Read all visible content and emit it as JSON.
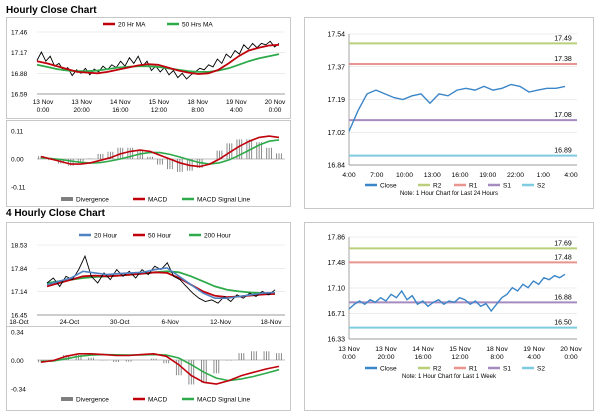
{
  "sections": {
    "hourly_title": "Hourly Close Chart",
    "four_hourly_title": "4 Hourly Close Chart"
  },
  "colors": {
    "price": "#000000",
    "ma_short": "#c0000b",
    "ma_long": "#2eaa4a",
    "ma_blue": "#4f82c2",
    "macd_line": "#c0000b",
    "macd_signal": "#2eaa4a",
    "divergence": "#7f7f7f",
    "close_line": "#3a86c8",
    "r2": "#b9cf7b",
    "r1": "#e8958f",
    "s1": "#a68bc1",
    "s2": "#7fcbe0",
    "grid": "#d9d9d9"
  },
  "chart_data": [
    {
      "type": "line",
      "legend": [
        "20 Hr MA",
        "50 Hrs MA"
      ],
      "ylim": [
        16.59,
        17.46
      ],
      "yticks": [
        "17.46",
        "17.17",
        "16.88",
        "16.59"
      ],
      "xticks": [
        "13 Nov\n0:00",
        "13 Nov\n20:00",
        "14 Nov\n16:00",
        "15 Nov\n12:00",
        "18 Nov\n8:00",
        "19 Nov\n4:00",
        "20 Nov\n0:00"
      ],
      "series": [
        {
          "name": "Price",
          "color_key": "price",
          "values": [
            17.06,
            17.18,
            17.05,
            17.12,
            16.98,
            17.02,
            16.92,
            16.96,
            16.85,
            16.93,
            16.88,
            16.95,
            16.86,
            16.94,
            16.9,
            16.98,
            16.93,
            17.0,
            16.96,
            17.05,
            16.98,
            17.1,
            17.02,
            17.12,
            16.98,
            17.05,
            16.92,
            16.98,
            16.9,
            16.96,
            16.86,
            16.92,
            16.82,
            16.88,
            16.8,
            16.86,
            16.9,
            16.95,
            16.93,
            17.0,
            16.97,
            17.08,
            17.02,
            17.15,
            17.1,
            17.2,
            17.15,
            17.28,
            17.22,
            17.3,
            17.24,
            17.3,
            17.28,
            17.33,
            17.25,
            17.3
          ]
        },
        {
          "name": "20 Hr MA",
          "color_key": "ma_short",
          "values": [
            17.05,
            17.02,
            16.98,
            16.94,
            16.9,
            16.89,
            16.88,
            16.9,
            16.93,
            16.96,
            16.99,
            17.01,
            17.0,
            16.96,
            16.92,
            16.89,
            16.87,
            16.88,
            16.93,
            17.02,
            17.12,
            17.2,
            17.24,
            17.27,
            17.28
          ]
        },
        {
          "name": "50 Hrs MA",
          "color_key": "ma_long",
          "values": [
            17.0,
            16.97,
            16.94,
            16.92,
            16.91,
            16.91,
            16.92,
            16.94,
            16.96,
            16.97,
            16.98,
            16.98,
            16.97,
            16.95,
            16.93,
            16.91,
            16.9,
            16.9,
            16.92,
            16.95,
            17.0,
            17.05,
            17.09,
            17.12,
            17.15
          ]
        }
      ]
    },
    {
      "type": "bar",
      "legend": [
        "Divergence",
        "MACD",
        "MACD Signal Line"
      ],
      "ylim": [
        -0.11,
        0.11
      ],
      "yticks": [
        "0.11",
        "0.00",
        "-0.11"
      ],
      "series": [
        {
          "name": "MACD",
          "color_key": "macd_line",
          "values": [
            0.01,
            0.0,
            -0.01,
            -0.02,
            -0.02,
            -0.015,
            -0.005,
            0.005,
            0.02,
            0.03,
            0.035,
            0.03,
            0.015,
            0.0,
            -0.015,
            -0.025,
            -0.03,
            -0.02,
            0.0,
            0.025,
            0.05,
            0.07,
            0.085,
            0.09,
            0.085
          ]
        },
        {
          "name": "MACD Signal Line",
          "color_key": "macd_signal",
          "values": [
            0.005,
            0.002,
            -0.002,
            -0.008,
            -0.013,
            -0.016,
            -0.014,
            -0.008,
            0.0,
            0.01,
            0.02,
            0.026,
            0.025,
            0.018,
            0.008,
            -0.004,
            -0.014,
            -0.02,
            -0.015,
            -0.003,
            0.015,
            0.035,
            0.055,
            0.07,
            0.075
          ]
        }
      ]
    },
    {
      "type": "line",
      "ylim": [
        16.84,
        17.54
      ],
      "yticks": [
        "17.54",
        "17.37",
        "17.19",
        "17.02",
        "16.84"
      ],
      "xticks": [
        "4:00",
        "7:00",
        "10:00",
        "13:00",
        "16:00",
        "19:00",
        "22:00",
        "1:00",
        "4:00"
      ],
      "levels": [
        {
          "name": "R2",
          "value": 17.49,
          "label": "17.49",
          "color_key": "r2"
        },
        {
          "name": "R1",
          "value": 17.38,
          "label": "17.38",
          "color_key": "r1"
        },
        {
          "name": "S1",
          "value": 17.08,
          "label": "17.08",
          "color_key": "s1"
        },
        {
          "name": "S2",
          "value": 16.89,
          "label": "16.89",
          "color_key": "s2"
        }
      ],
      "legend": [
        "Close",
        "R2",
        "R1",
        "S1",
        "S2"
      ],
      "note": "Note: 1 Hour Chart for Last 24 Hours",
      "series": [
        {
          "name": "Close",
          "color_key": "close_line",
          "values": [
            17.02,
            17.13,
            17.22,
            17.24,
            17.22,
            17.2,
            17.19,
            17.21,
            17.22,
            17.17,
            17.22,
            17.21,
            17.24,
            17.25,
            17.24,
            17.26,
            17.24,
            17.25,
            17.27,
            17.26,
            17.23,
            17.24,
            17.25,
            17.25,
            17.26
          ]
        }
      ]
    },
    {
      "type": "line",
      "legend": [
        "20 Hour",
        "50 Hour",
        "200 Hour"
      ],
      "ylim": [
        16.45,
        18.53
      ],
      "yticks": [
        "18.53",
        "17.84",
        "17.14",
        "16.45"
      ],
      "xticks": [
        "18-Oct",
        "24-Oct",
        "30-Oct",
        "6-Nov",
        "12-Nov",
        "18-Nov"
      ],
      "series": [
        {
          "name": "Price",
          "color_key": "price",
          "values": [
            17.4,
            17.55,
            17.3,
            17.6,
            17.5,
            17.8,
            18.2,
            17.6,
            17.4,
            17.7,
            17.5,
            17.8,
            17.6,
            17.75,
            17.55,
            17.8,
            17.65,
            17.9,
            17.8,
            18.0,
            17.6,
            17.5,
            17.3,
            17.1,
            16.95,
            16.85,
            16.9,
            16.8,
            17.0,
            16.85,
            17.05,
            16.95,
            17.1,
            17.0,
            17.15,
            17.05,
            17.2
          ]
        },
        {
          "name": "20 Hour",
          "color_key": "ma_blue",
          "values": [
            17.35,
            17.45,
            17.55,
            17.75,
            17.7,
            17.65,
            17.68,
            17.7,
            17.72,
            17.8,
            17.85,
            17.6,
            17.35,
            17.1,
            16.95,
            16.95,
            17.0,
            17.05,
            17.1,
            17.12
          ]
        },
        {
          "name": "50 Hour",
          "color_key": "ma_short",
          "values": [
            17.3,
            17.4,
            17.5,
            17.6,
            17.62,
            17.6,
            17.62,
            17.65,
            17.68,
            17.72,
            17.7,
            17.55,
            17.35,
            17.15,
            17.02,
            16.98,
            17.0,
            17.03,
            17.06,
            17.08
          ]
        },
        {
          "name": "200 Hour",
          "color_key": "ma_long",
          "values": [
            17.4,
            17.45,
            17.5,
            17.55,
            17.58,
            17.6,
            17.62,
            17.65,
            17.68,
            17.72,
            17.75,
            17.72,
            17.6,
            17.45,
            17.3,
            17.2,
            17.15,
            17.12,
            17.1,
            17.08
          ]
        }
      ]
    },
    {
      "type": "bar",
      "legend": [
        "Divergence",
        "MACD",
        "MACD Signal Line"
      ],
      "ylim": [
        -0.34,
        0.34
      ],
      "yticks": [
        "0.34",
        "0.00",
        "-0.34"
      ],
      "series": [
        {
          "name": "MACD",
          "color_key": "macd_line",
          "values": [
            -0.02,
            0.0,
            0.05,
            0.08,
            0.08,
            0.07,
            0.06,
            0.06,
            0.07,
            0.08,
            0.05,
            -0.05,
            -0.18,
            -0.26,
            -0.28,
            -0.24,
            -0.18,
            -0.14,
            -0.1,
            -0.07
          ]
        },
        {
          "name": "MACD Signal Line",
          "color_key": "macd_signal",
          "values": [
            -0.01,
            -0.005,
            0.02,
            0.05,
            0.065,
            0.07,
            0.068,
            0.066,
            0.067,
            0.07,
            0.065,
            0.03,
            -0.05,
            -0.14,
            -0.21,
            -0.24,
            -0.22,
            -0.19,
            -0.15,
            -0.11
          ]
        }
      ]
    },
    {
      "type": "line",
      "ylim": [
        16.33,
        17.86
      ],
      "yticks": [
        "17.86",
        "17.48",
        "17.10",
        "16.71",
        "16.33"
      ],
      "xticks": [
        "13 Nov\n0:00",
        "13 Nov\n20:00",
        "14 Nov\n16:00",
        "15 Nov\n12:00",
        "18 Nov\n8:00",
        "19 Nov\n4:00",
        "20 Nov\n0:00"
      ],
      "levels": [
        {
          "name": "R2",
          "value": 17.69,
          "label": "17.69",
          "color_key": "r2"
        },
        {
          "name": "R1",
          "value": 17.48,
          "label": "17.48",
          "color_key": "r1"
        },
        {
          "name": "S1",
          "value": 16.88,
          "label": "16.88",
          "color_key": "s1"
        },
        {
          "name": "S2",
          "value": 16.5,
          "label": "16.50",
          "color_key": "s2"
        }
      ],
      "legend": [
        "Close",
        "R2",
        "R1",
        "S1",
        "S2"
      ],
      "note": "Note: 1 Hour Chart for Last 1 Week",
      "series": [
        {
          "name": "Close",
          "color_key": "close_line",
          "values": [
            16.78,
            16.85,
            16.9,
            16.85,
            16.92,
            16.88,
            16.95,
            16.9,
            17.0,
            16.95,
            17.05,
            16.92,
            16.98,
            16.85,
            16.9,
            16.82,
            16.88,
            16.92,
            16.85,
            16.9,
            16.88,
            16.95,
            16.92,
            16.85,
            16.9,
            16.82,
            16.86,
            16.75,
            16.85,
            16.95,
            17.0,
            17.1,
            17.05,
            17.15,
            17.1,
            17.2,
            17.15,
            17.25,
            17.22,
            17.28,
            17.25,
            17.3
          ]
        }
      ]
    }
  ]
}
